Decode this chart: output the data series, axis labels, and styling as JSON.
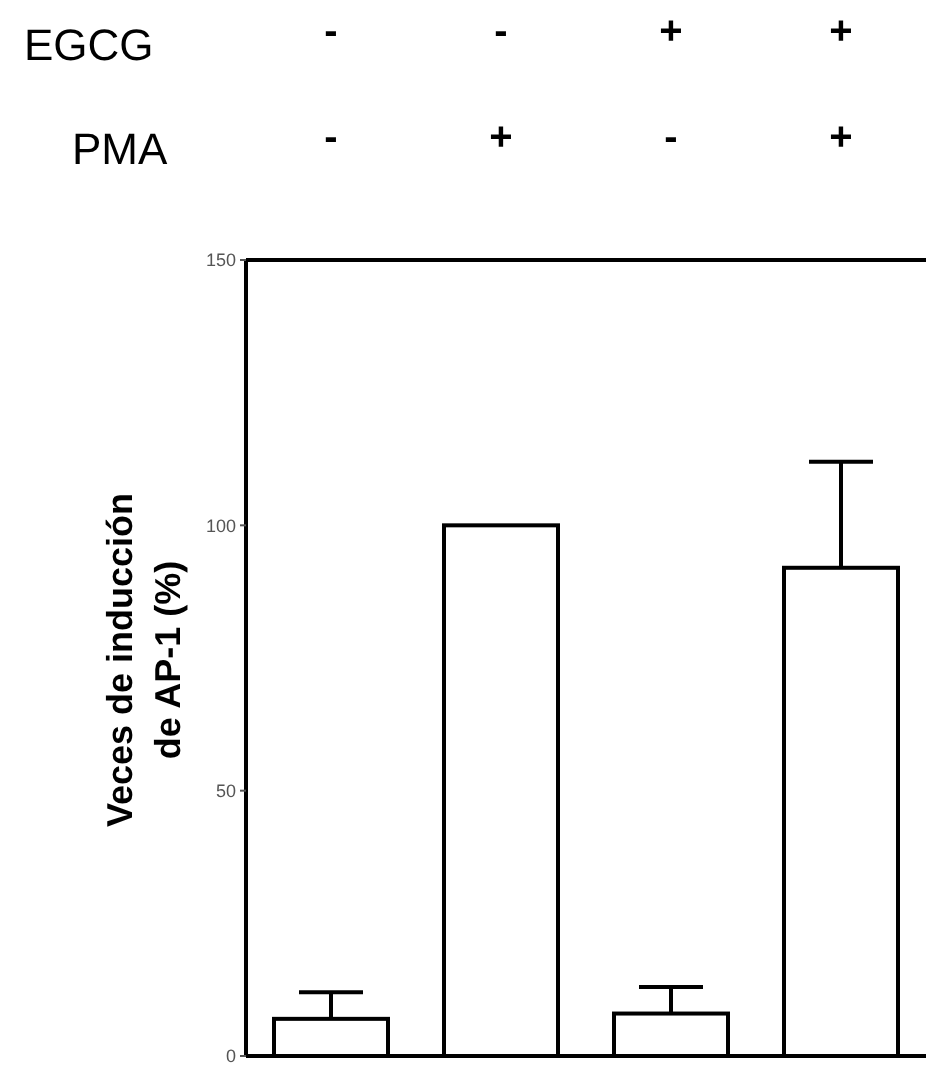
{
  "chart_data": {
    "type": "bar",
    "ylabel": "Veces de inducción\nde AP-1 (%)",
    "categories": [
      "-\n-",
      "-\n+",
      "+\n-",
      "+\n+"
    ],
    "annotations": [
      "EGCG",
      "PMA"
    ],
    "values": [
      7,
      100,
      8,
      92
    ],
    "errors": [
      [
        7,
        12
      ],
      null,
      [
        8,
        13
      ],
      [
        92,
        112
      ]
    ],
    "color": "#ffffff",
    "ylim": [
      0,
      150
    ],
    "yticks": [
      0,
      50,
      100,
      150
    ],
    "ref_lines": [
      {
        "axis": "y",
        "value": 150,
        "color": "#000000"
      }
    ],
    "grid": false,
    "legend": false
  }
}
